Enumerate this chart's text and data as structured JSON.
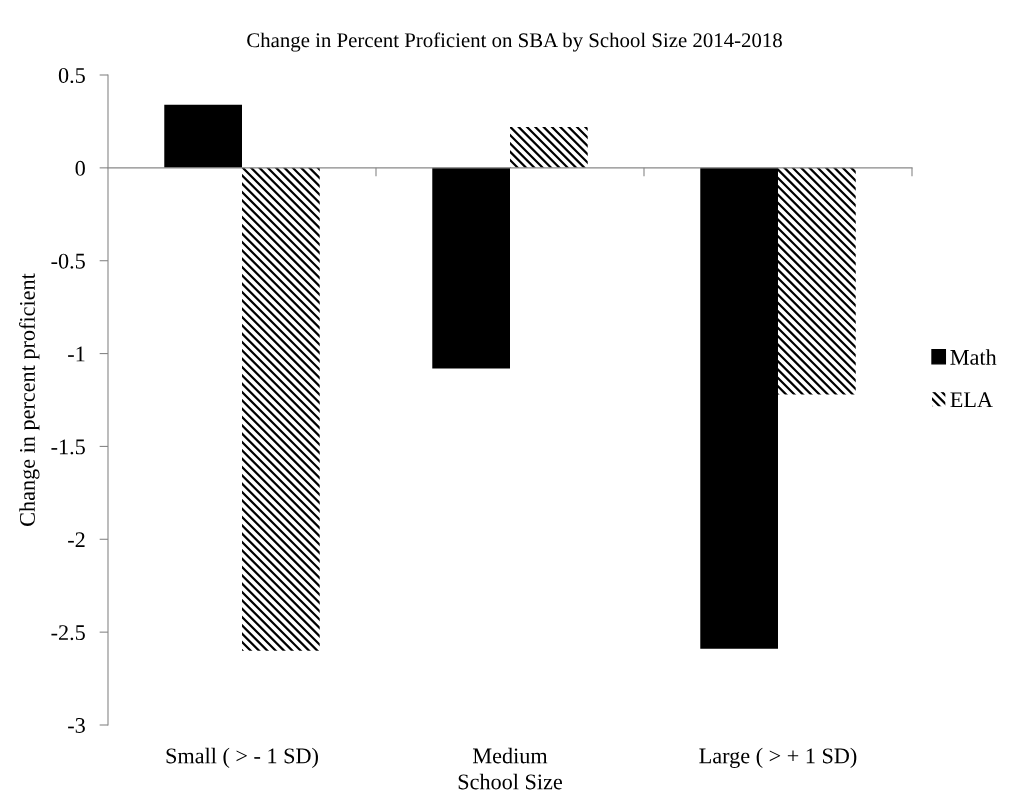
{
  "chart_data": {
    "type": "bar",
    "title": "Change in Percent Proficient on SBA by School Size 2014-2018",
    "xlabel": "School Size",
    "ylabel": "Change in percent proficient",
    "categories": [
      "Small ( > - 1 SD)",
      "Medium",
      "Large ( > + 1 SD)"
    ],
    "series": [
      {
        "name": "Math",
        "color": "#000000",
        "values": [
          0.34,
          -1.08,
          -2.59
        ]
      },
      {
        "name": "ELA",
        "color": "#000000",
        "values": [
          -2.6,
          0.22,
          -1.22
        ]
      }
    ],
    "ylim": [
      -3,
      0.5
    ],
    "yticks": [
      {
        "value": -3,
        "label": "-3"
      },
      {
        "value": -2.5,
        "label": "-2.5"
      },
      {
        "value": -2,
        "label": "-2"
      },
      {
        "value": -1.5,
        "label": "-1.5"
      },
      {
        "value": -1,
        "label": "-1"
      },
      {
        "value": -0.5,
        "label": "-0.5"
      },
      0,
      0.5
    ],
    "legend": "right"
  }
}
